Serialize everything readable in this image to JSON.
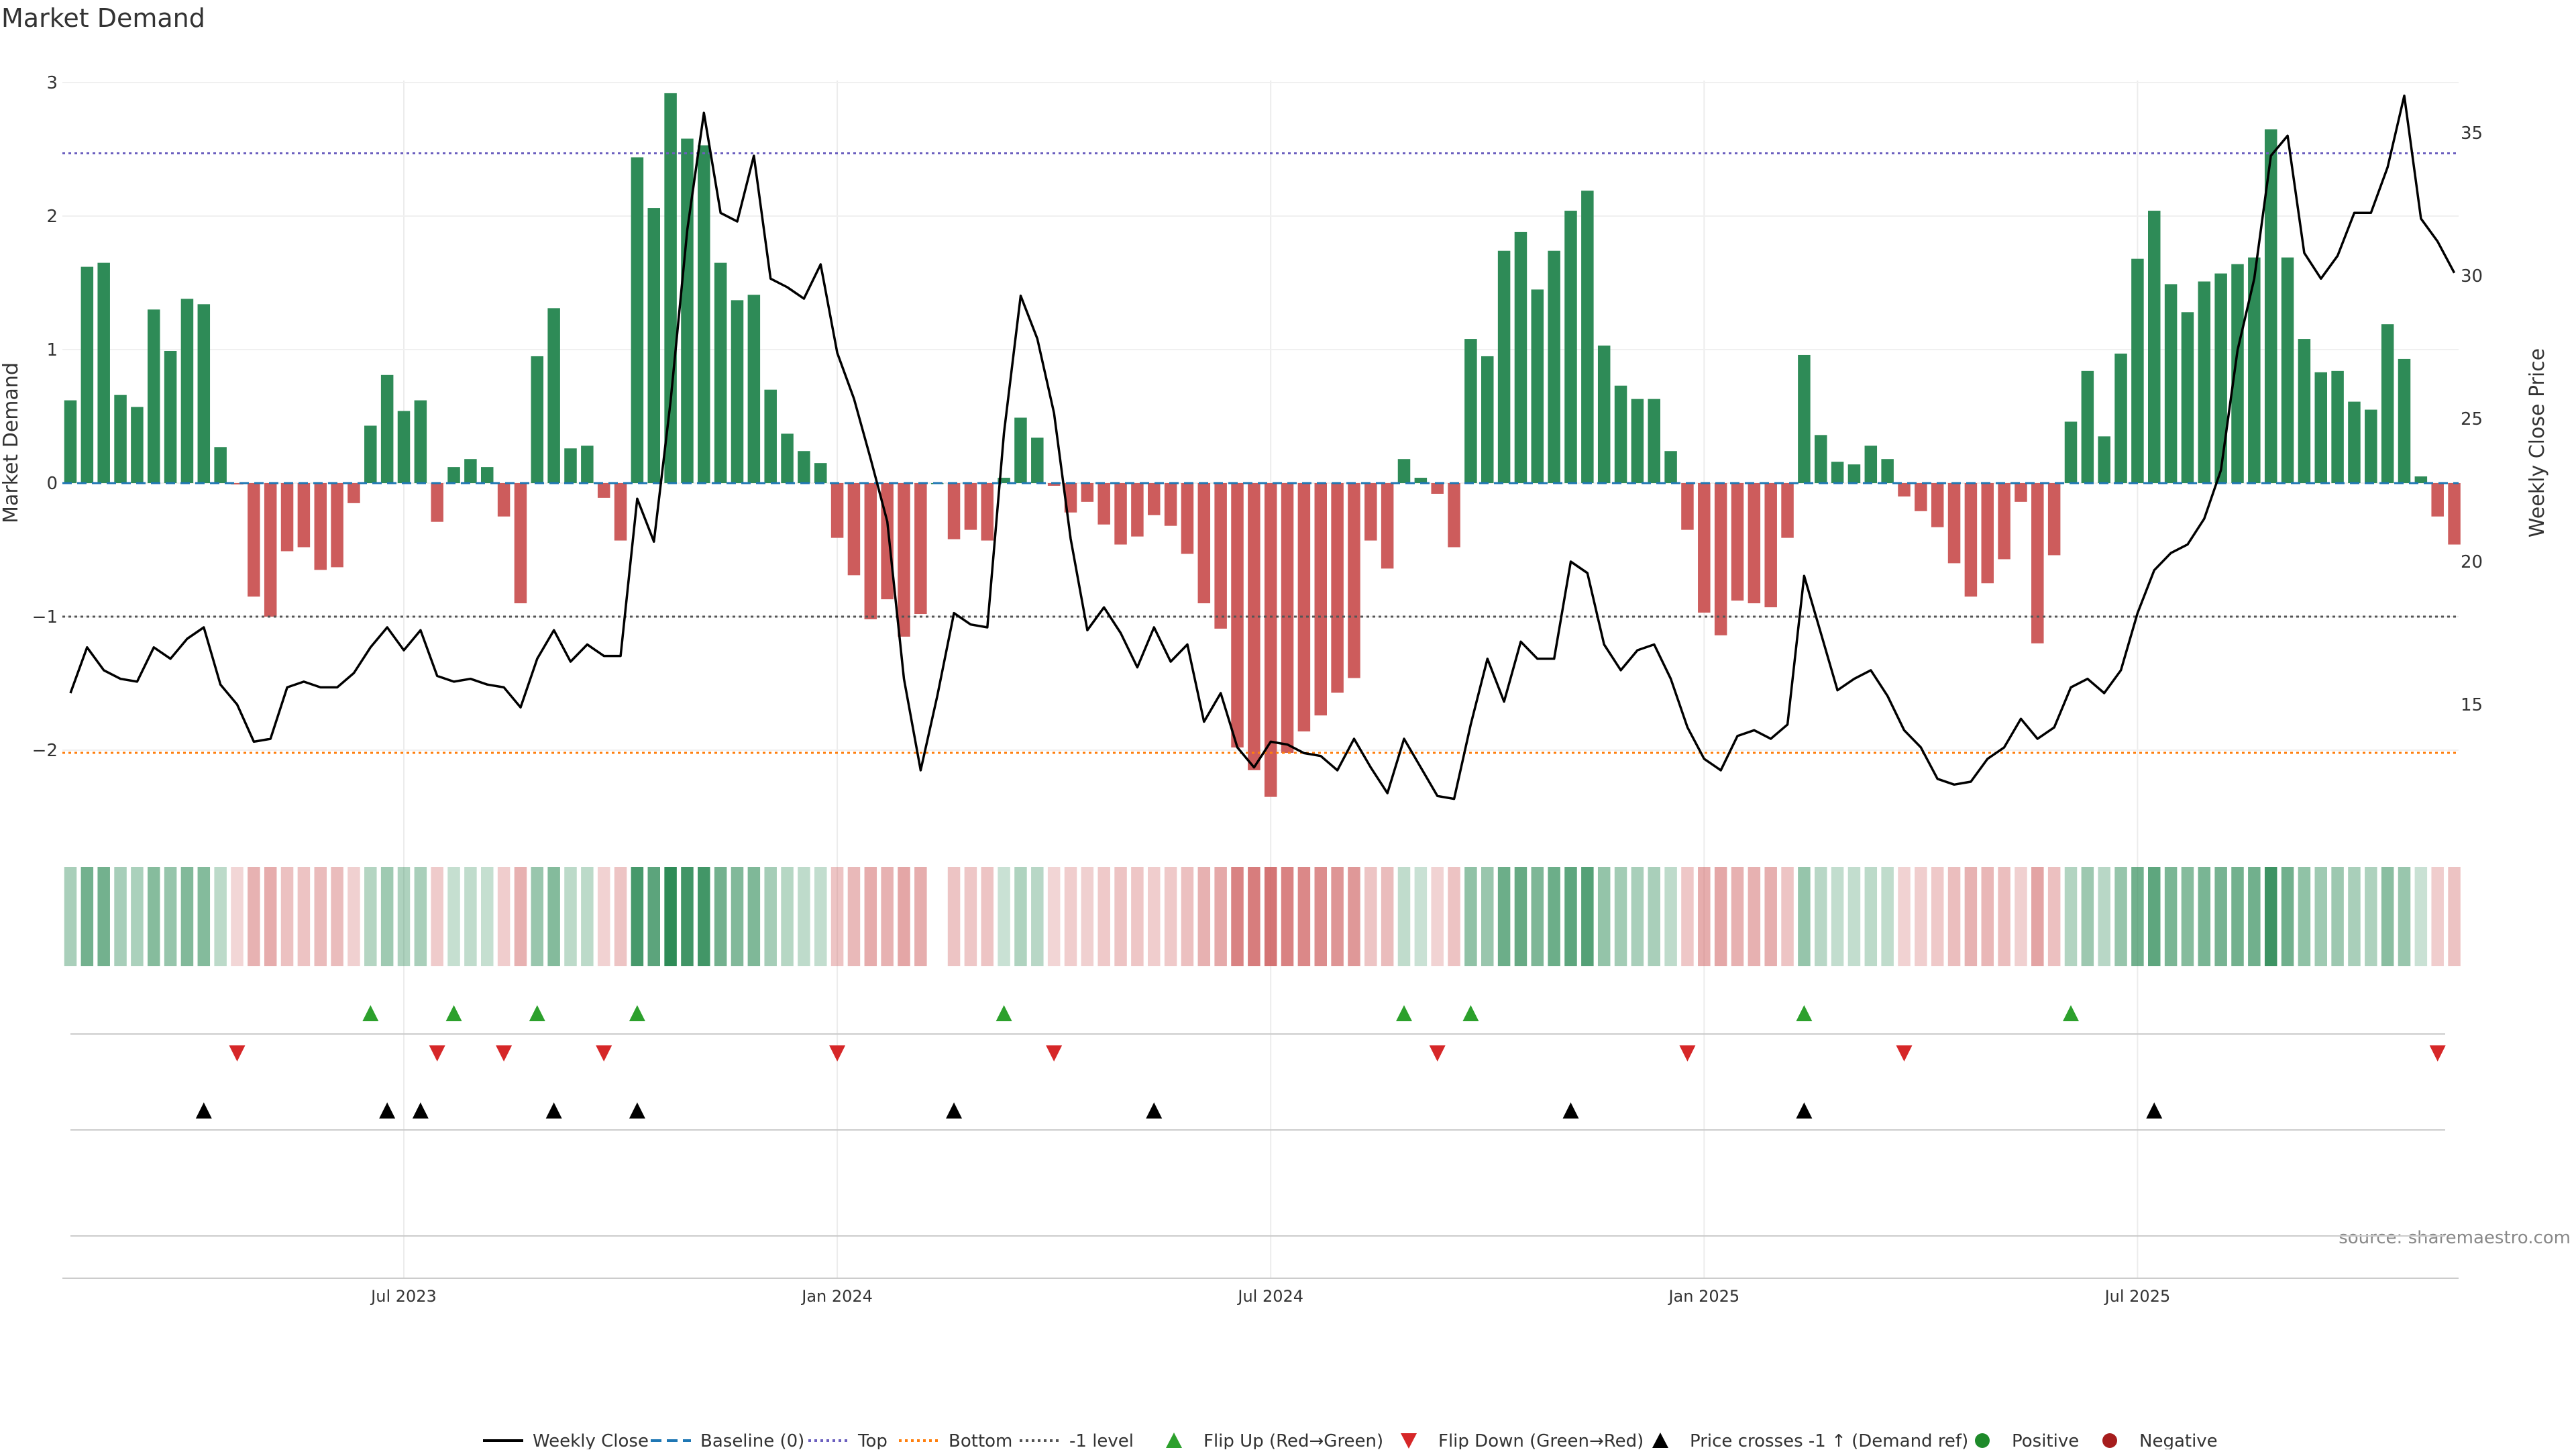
{
  "chart_data": {
    "type": "bar",
    "title": "Market Demand",
    "ylabel": "Market Demand",
    "ylabel_right": "Weekly Close Price",
    "ylim": [
      -2.6,
      3.05
    ],
    "ylim_right": [
      10.5,
      37.5
    ],
    "y_ticks": [
      -2,
      -1,
      0,
      1,
      2,
      3
    ],
    "y_tick_labels": [
      "−2",
      "−1",
      "0",
      "1",
      "2",
      "3"
    ],
    "y_ticks_right": [
      15,
      20,
      25,
      30,
      35
    ],
    "y_tick_labels_right": [
      "15",
      "20",
      "25",
      "30",
      "35"
    ],
    "x_ticks": [
      {
        "week": 20,
        "label": "Jul 2023"
      },
      {
        "week": 46,
        "label": "Jan 2024"
      },
      {
        "week": 72,
        "label": "Jul 2024"
      },
      {
        "week": 98,
        "label": "Jan 2025"
      },
      {
        "week": 124,
        "label": "Jul 2025"
      }
    ],
    "weeks": 144,
    "reference_lines": [
      {
        "name": "Baseline (0)",
        "value": 0,
        "color": "#1f77b4",
        "style": "dashed"
      },
      {
        "name": "Top",
        "value": 2.47,
        "color": "#6b5fbf",
        "style": "dotted"
      },
      {
        "name": "Bottom",
        "value": -2.02,
        "color": "#ff7f0e",
        "style": "dotted"
      },
      {
        "name": "-1 level",
        "value": -1,
        "color": "#555555",
        "style": "dotted"
      }
    ],
    "series": [
      {
        "name": "Market Demand",
        "positive_color": "#2e8b57",
        "negative_color": "#cd5c5c",
        "values": [
          0.62,
          1.62,
          1.65,
          0.66,
          0.57,
          1.3,
          0.99,
          1.38,
          1.34,
          0.27,
          -0.01,
          -0.85,
          -1.0,
          -0.51,
          -0.48,
          -0.65,
          -0.63,
          -0.15,
          0.43,
          0.81,
          0.54,
          0.62,
          -0.29,
          0.12,
          0.18,
          0.12,
          -0.25,
          -0.9,
          0.95,
          1.31,
          0.26,
          0.28,
          -0.11,
          -0.43,
          2.44,
          2.06,
          2.92,
          2.58,
          2.53,
          1.65,
          1.37,
          1.41,
          0.7,
          0.37,
          0.24,
          0.15,
          -0.41,
          -0.69,
          -1.02,
          -0.87,
          -1.15,
          -0.98,
          0.0,
          -0.42,
          -0.35,
          -0.43,
          0.04,
          0.49,
          0.34,
          -0.02,
          -0.22,
          -0.14,
          -0.31,
          -0.46,
          -0.4,
          -0.24,
          -0.32,
          -0.53,
          -0.9,
          -1.09,
          -1.98,
          -2.15,
          -2.35,
          -2.02,
          -1.86,
          -1.74,
          -1.57,
          -1.46,
          -0.43,
          -0.64,
          0.18,
          0.04,
          -0.08,
          -0.48,
          1.08,
          0.95,
          1.74,
          1.88,
          1.45,
          1.74,
          2.04,
          2.19,
          1.03,
          0.73,
          0.63,
          0.63,
          0.24,
          -0.35,
          -0.97,
          -1.14,
          -0.88,
          -0.9,
          -0.93,
          -0.41,
          0.96,
          0.36,
          0.16,
          0.14,
          0.28,
          0.18,
          -0.1,
          -0.21,
          -0.33,
          -0.6,
          -0.85,
          -0.75,
          -0.57,
          -0.14,
          -1.2,
          -0.54,
          0.46,
          0.84,
          0.35,
          0.97,
          1.68,
          2.04,
          1.49,
          1.28,
          1.51,
          1.57,
          1.64,
          1.69,
          2.65,
          1.69,
          1.08,
          0.83,
          0.84,
          0.61,
          0.55,
          1.19,
          0.93,
          0.05,
          -0.25,
          -0.46
        ]
      },
      {
        "name": "Weekly Close",
        "color": "#000000",
        "axis": "right",
        "values": [
          15.4,
          17.0,
          16.2,
          15.9,
          15.8,
          17.0,
          16.6,
          17.3,
          17.7,
          15.7,
          15.0,
          13.7,
          13.8,
          15.6,
          15.8,
          15.6,
          15.6,
          16.1,
          17.0,
          17.7,
          16.9,
          17.6,
          16.0,
          15.8,
          15.9,
          15.7,
          15.6,
          14.9,
          16.6,
          17.6,
          16.5,
          17.1,
          16.7,
          16.7,
          22.2,
          20.7,
          25.6,
          31.6,
          35.7,
          32.2,
          31.9,
          34.2,
          29.9,
          29.6,
          29.2,
          30.4,
          27.3,
          25.7,
          23.6,
          21.4,
          15.9,
          12.7,
          15.3,
          18.2,
          17.8,
          17.7,
          24.5,
          29.3,
          27.8,
          25.2,
          20.8,
          17.6,
          18.4,
          17.5,
          16.3,
          17.7,
          16.5,
          17.1,
          14.4,
          15.4,
          13.5,
          12.8,
          13.7,
          13.6,
          13.3,
          13.2,
          12.7,
          13.8,
          12.8,
          11.9,
          13.8,
          12.8,
          11.8,
          11.7,
          14.3,
          16.6,
          15.1,
          17.2,
          16.6,
          16.6,
          20.0,
          19.6,
          17.1,
          16.2,
          16.9,
          17.1,
          15.9,
          14.2,
          13.1,
          12.7,
          13.9,
          14.1,
          13.8,
          14.3,
          19.5,
          17.5,
          15.5,
          15.9,
          16.2,
          15.3,
          14.1,
          13.5,
          12.4,
          12.2,
          12.3,
          13.1,
          13.5,
          14.5,
          13.8,
          14.2,
          15.6,
          15.9,
          15.4,
          16.2,
          18.2,
          19.7,
          20.3,
          20.6,
          21.5,
          23.2,
          27.4,
          29.9,
          34.2,
          34.9,
          30.8,
          29.9,
          30.7,
          32.2,
          32.2,
          33.8,
          36.3,
          32.0,
          31.2,
          30.1
        ]
      }
    ],
    "demand_strip": {
      "description_label": "Market Demand intensity heat strip",
      "positive_color": "#2e8b57",
      "negative_color": "#cd5c5c"
    },
    "flip_up_weeks": [
      18,
      23,
      28,
      34,
      56,
      80,
      84,
      104,
      120
    ],
    "flip_down_weeks": [
      10,
      22,
      26,
      32,
      46,
      59,
      82,
      97,
      110,
      142
    ],
    "price_cross_weeks": [
      8,
      19,
      21,
      29,
      34,
      53,
      65,
      90,
      104,
      125
    ],
    "legend": [
      {
        "label": "Weekly Close",
        "symbol": "line",
        "color": "#000000"
      },
      {
        "label": "Baseline (0)",
        "symbol": "dash",
        "color": "#1f77b4"
      },
      {
        "label": "Top",
        "symbol": "dot",
        "color": "#6b5fbf"
      },
      {
        "label": "Bottom",
        "symbol": "dot",
        "color": "#ff7f0e"
      },
      {
        "label": "-1 level",
        "symbol": "dot",
        "color": "#555555"
      },
      {
        "label": "Flip Up (Red→Green)",
        "symbol": "tri-up",
        "color": "#2ca02c"
      },
      {
        "label": "Flip Down (Green→Red)",
        "symbol": "tri-down",
        "color": "#d62728"
      },
      {
        "label": "Price crosses -1 ↑ (Demand ref)",
        "symbol": "tri-up",
        "color": "#000000"
      },
      {
        "label": "Positive",
        "symbol": "circle",
        "color": "#1e8a2a"
      },
      {
        "label": "Negative",
        "symbol": "circle",
        "color": "#a61d1d"
      }
    ],
    "source": "source: sharemaestro.com"
  }
}
